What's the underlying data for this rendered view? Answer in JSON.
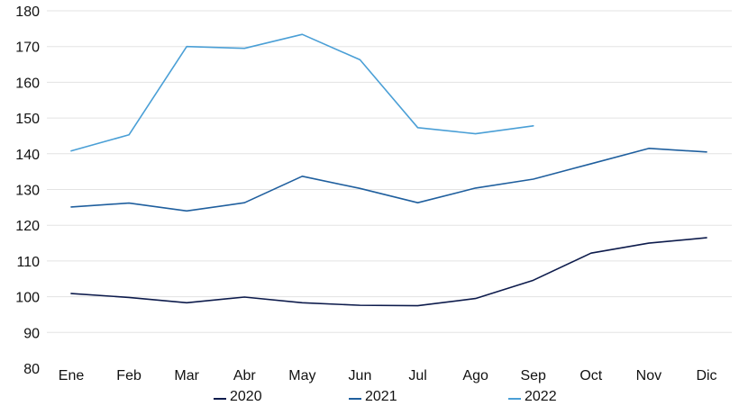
{
  "chart_data": {
    "type": "line",
    "title": "",
    "xlabel": "",
    "ylabel": "",
    "categories": [
      "Ene",
      "Feb",
      "Mar",
      "Abr",
      "May",
      "Jun",
      "Jul",
      "Ago",
      "Sep",
      "Oct",
      "Nov",
      "Dic"
    ],
    "ylim": [
      80,
      180
    ],
    "yticks": [
      80,
      90,
      100,
      110,
      120,
      130,
      140,
      150,
      160,
      170,
      180
    ],
    "grid": true,
    "legend_position": "bottom",
    "series": [
      {
        "name": "2020",
        "color": "#0d1b4c",
        "values": [
          100.9,
          99.8,
          98.3,
          99.9,
          98.3,
          97.6,
          97.5,
          99.5,
          104.6,
          112.2,
          115.0,
          116.5
        ]
      },
      {
        "name": "2021",
        "color": "#1f5f9e",
        "values": [
          125.1,
          126.2,
          124.0,
          126.3,
          133.7,
          130.3,
          126.3,
          130.4,
          132.9,
          137.2,
          141.5,
          140.5
        ]
      },
      {
        "name": "2022",
        "color": "#4a9fd6",
        "values": [
          140.8,
          145.3,
          170.0,
          169.5,
          173.4,
          166.3,
          147.3,
          145.6,
          147.8,
          null,
          null,
          null
        ]
      }
    ]
  }
}
